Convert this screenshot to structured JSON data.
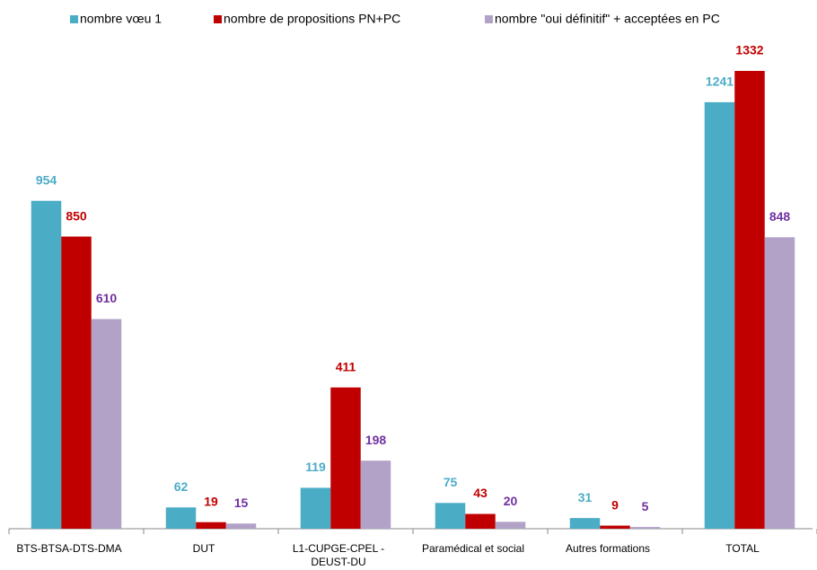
{
  "chart_data": {
    "type": "bar",
    "categories": [
      "BTS-BTSA-DTS-DMA",
      "DUT",
      "L1-CUPGE-CPEL - DEUST-DU",
      "Paramédical et social",
      "Autres formations",
      "TOTAL"
    ],
    "series": [
      {
        "name": "nombre vœu 1",
        "color": "#4bacc6",
        "label_color": "#4bacc6",
        "values": [
          954,
          62,
          119,
          75,
          31,
          1241
        ]
      },
      {
        "name": "nombre de propositions PN+PC",
        "color": "#c00000",
        "label_color": "#c00000",
        "values": [
          850,
          19,
          411,
          43,
          9,
          1332
        ]
      },
      {
        "name": "nombre \"oui définitif\" + acceptées en PC",
        "color": "#b2a2c7",
        "label_color": "#7030a0",
        "values": [
          610,
          15,
          198,
          20,
          5,
          848
        ]
      }
    ],
    "legend": "top",
    "data_labels": true
  }
}
